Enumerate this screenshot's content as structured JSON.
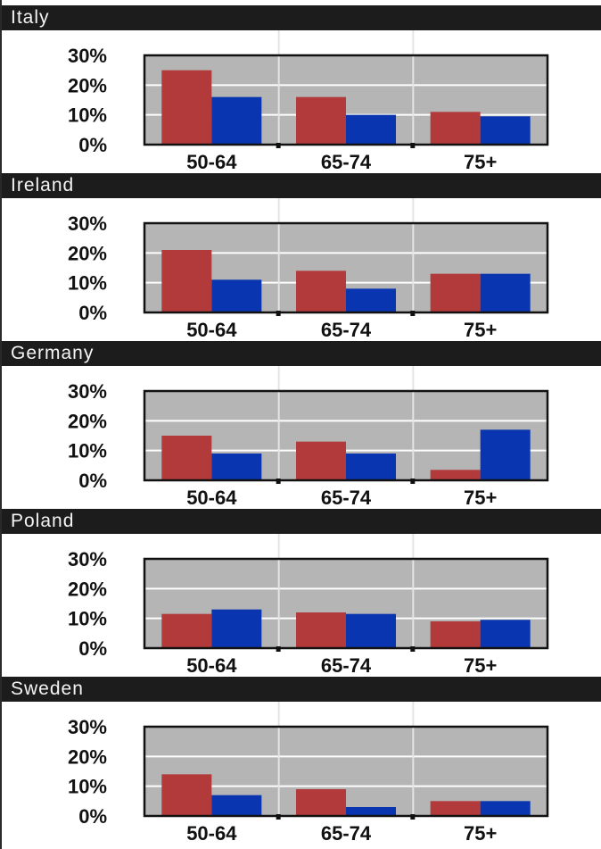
{
  "colors": {
    "series_a": "#b23a3a",
    "series_b": "#0a35b0",
    "plot_bg": "#b5b5b5",
    "header_bg": "#1c1c1c",
    "gridline": "#ffffff"
  },
  "chart_data": [
    {
      "type": "bar",
      "title": "Italy",
      "categories": [
        "50-64",
        "65-74",
        "75+"
      ],
      "series": [
        {
          "values": [
            25,
            16,
            11
          ]
        },
        {
          "values": [
            16,
            10,
            9.5
          ]
        }
      ],
      "ylim": [
        0,
        30
      ],
      "yticks": [
        "0%",
        "10%",
        "20%",
        "30%"
      ],
      "grid": true
    },
    {
      "type": "bar",
      "title": "Ireland",
      "categories": [
        "50-64",
        "65-74",
        "75+"
      ],
      "series": [
        {
          "values": [
            21,
            14,
            13
          ]
        },
        {
          "values": [
            11,
            8,
            13
          ]
        }
      ],
      "ylim": [
        0,
        30
      ],
      "yticks": [
        "0%",
        "10%",
        "20%",
        "30%"
      ],
      "grid": true
    },
    {
      "type": "bar",
      "title": "Germany",
      "categories": [
        "50-64",
        "65-74",
        "75+"
      ],
      "series": [
        {
          "values": [
            15,
            13,
            3.5
          ]
        },
        {
          "values": [
            9,
            9,
            17
          ]
        }
      ],
      "ylim": [
        0,
        30
      ],
      "yticks": [
        "0%",
        "10%",
        "20%",
        "30%"
      ],
      "grid": true
    },
    {
      "type": "bar",
      "title": "Poland",
      "categories": [
        "50-64",
        "65-74",
        "75+"
      ],
      "series": [
        {
          "values": [
            11.5,
            12,
            9
          ]
        },
        {
          "values": [
            13,
            11.5,
            9.5
          ]
        }
      ],
      "ylim": [
        0,
        30
      ],
      "yticks": [
        "0%",
        "10%",
        "20%",
        "30%"
      ],
      "grid": true
    },
    {
      "type": "bar",
      "title": "Sweden",
      "categories": [
        "50-64",
        "65-74",
        "75+"
      ],
      "series": [
        {
          "values": [
            14,
            9,
            5
          ]
        },
        {
          "values": [
            7,
            3,
            5
          ]
        }
      ],
      "ylim": [
        0,
        30
      ],
      "yticks": [
        "0%",
        "10%",
        "20%",
        "30%"
      ],
      "grid": true
    }
  ]
}
